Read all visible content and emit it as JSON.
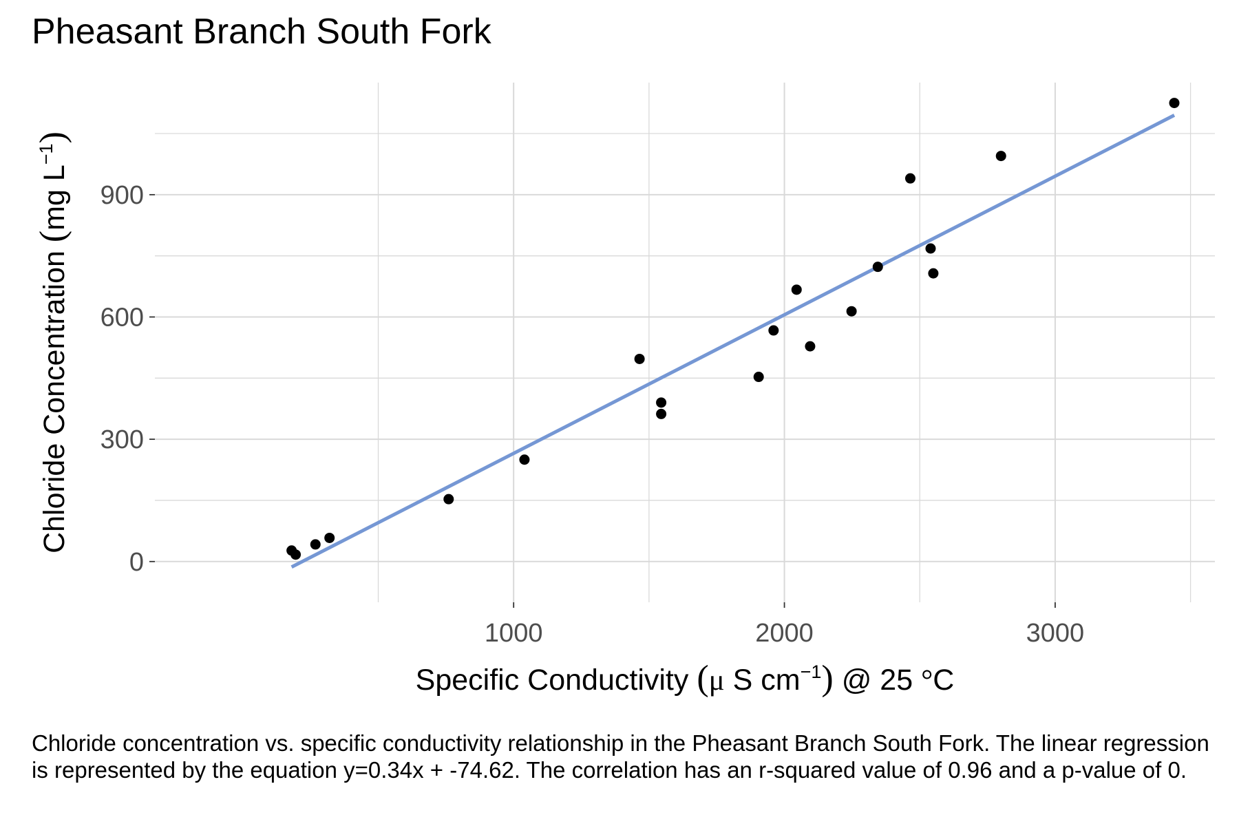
{
  "chart_data": {
    "type": "scatter",
    "title": "Pheasant Branch South Fork",
    "xlabel": "Specific Conductivity (μ S cm⁻¹) @ 25 °C",
    "xlabel_parts": {
      "before": "Specific Conductivity ",
      "open": "(",
      "mu": "μ",
      "unit": " S cm",
      "sup": "−1",
      "close": ")",
      "after": " @ 25 ",
      "degree": "°",
      "celsius": "C"
    },
    "ylabel": "Chloride Concentration (mg L⁻¹)",
    "ylabel_parts": {
      "before": "Chloride Concentration ",
      "open": "(",
      "unit": "mg L",
      "sup": "−1",
      "close": ")"
    },
    "xlim": [
      -325,
      3590
    ],
    "ylim": [
      -100,
      1175
    ],
    "x_major_ticks": [
      1000,
      2000,
      3000
    ],
    "x_minor_ticks": [
      500,
      1500,
      2500,
      3500
    ],
    "y_major_ticks": [
      0,
      300,
      600,
      900
    ],
    "y_minor_ticks": [
      150,
      450,
      750,
      1050
    ],
    "grid": true,
    "legend": "none",
    "point_color": "#000000",
    "line_color": "#7597d4",
    "gridline_color": "#d9d9d9",
    "points": [
      {
        "x": 180,
        "y": 27
      },
      {
        "x": 195,
        "y": 17
      },
      {
        "x": 268,
        "y": 42
      },
      {
        "x": 320,
        "y": 58
      },
      {
        "x": 760,
        "y": 153
      },
      {
        "x": 1040,
        "y": 250
      },
      {
        "x": 1465,
        "y": 497
      },
      {
        "x": 1545,
        "y": 390
      },
      {
        "x": 1545,
        "y": 362
      },
      {
        "x": 1905,
        "y": 453
      },
      {
        "x": 1960,
        "y": 567
      },
      {
        "x": 2045,
        "y": 667
      },
      {
        "x": 2095,
        "y": 528
      },
      {
        "x": 2248,
        "y": 614
      },
      {
        "x": 2345,
        "y": 723
      },
      {
        "x": 2465,
        "y": 940
      },
      {
        "x": 2540,
        "y": 768
      },
      {
        "x": 2550,
        "y": 707
      },
      {
        "x": 2800,
        "y": 995
      },
      {
        "x": 3440,
        "y": 1125
      }
    ],
    "regression_line": {
      "slope": 0.34,
      "intercept": -74.62,
      "x_range": [
        180,
        3440
      ]
    }
  },
  "caption": "Chloride concentration vs. specific conductivity relationship in the Pheasant Branch South Fork. The linear regression is represented by the equation y=0.34x + -74.62. The correlation has an r-squared value of 0.96 and a p-value of 0."
}
